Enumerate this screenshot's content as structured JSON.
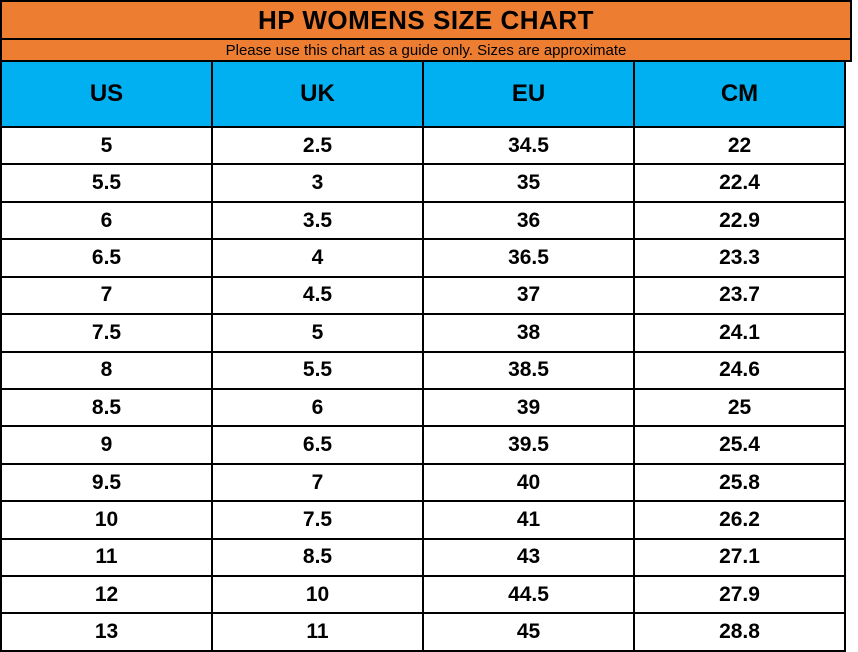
{
  "title": "HP WOMENS SIZE CHART",
  "subtitle": "Please use this chart as a guide only. Sizes are approximate",
  "colors": {
    "header_orange": "#ED7D31",
    "header_blue": "#00B0F0",
    "border_black": "#000000",
    "text_black": "#000000",
    "row_white": "#FFFFFF"
  },
  "chart_data": {
    "type": "table",
    "title": "HP WOMENS SIZE CHART",
    "subtitle": "Please use this chart as a guide only. Sizes are approximate",
    "columns": [
      "US",
      "UK",
      "EU",
      "CM"
    ],
    "rows": [
      [
        "5",
        "2.5",
        "34.5",
        "22"
      ],
      [
        "5.5",
        "3",
        "35",
        "22.4"
      ],
      [
        "6",
        "3.5",
        "36",
        "22.9"
      ],
      [
        "6.5",
        "4",
        "36.5",
        "23.3"
      ],
      [
        "7",
        "4.5",
        "37",
        "23.7"
      ],
      [
        "7.5",
        "5",
        "38",
        "24.1"
      ],
      [
        "8",
        "5.5",
        "38.5",
        "24.6"
      ],
      [
        "8.5",
        "6",
        "39",
        "25"
      ],
      [
        "9",
        "6.5",
        "39.5",
        "25.4"
      ],
      [
        "9.5",
        "7",
        "40",
        "25.8"
      ],
      [
        "10",
        "7.5",
        "41",
        "26.2"
      ],
      [
        "11",
        "8.5",
        "43",
        "27.1"
      ],
      [
        "12",
        "10",
        "44.5",
        "27.9"
      ],
      [
        "13",
        "11",
        "45",
        "28.8"
      ]
    ]
  }
}
